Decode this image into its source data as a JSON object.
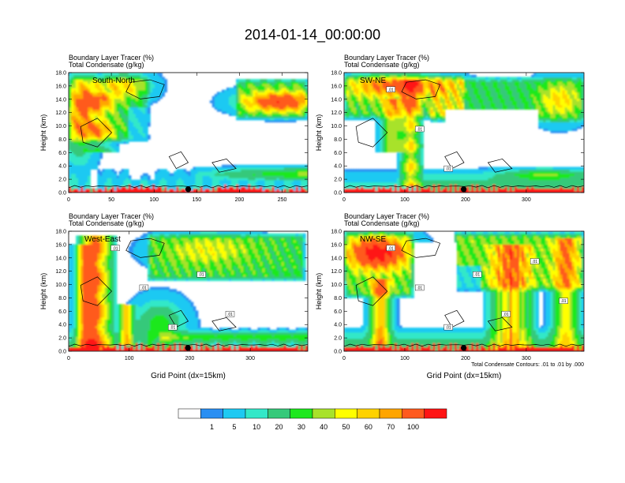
{
  "figure_title": "2014-01-14_00:00:00",
  "contour_note": "Total Condensate Contours: .01 to .01 by .000",
  "colors": {
    "levels": [
      "#ffffff",
      "#2a8ff2",
      "#1ec9f2",
      "#33e8c8",
      "#35c97a",
      "#1ee81e",
      "#a8e22a",
      "#ffff00",
      "#ffd200",
      "#ffa500",
      "#ff5a1e",
      "#ff1414"
    ],
    "contour": "#000000",
    "marker": "#000000"
  },
  "chart_data": [
    {
      "type": "heatmap",
      "panel_label": "South-North",
      "title_line1": "Boundary Layer Tracer   (%)",
      "title_line2": "Total Condensate   (g/kg)",
      "ylabel": "Height (km)",
      "xlabel": "",
      "xlim": [
        0,
        280
      ],
      "xticks": [
        0,
        50,
        100,
        150,
        200,
        250
      ],
      "ylim": [
        0,
        18
      ],
      "yticks": [
        "0.0",
        "2.0",
        "4.0",
        "6.0",
        "8.0",
        "10.0",
        "12.0",
        "14.0",
        "16.0",
        "18.0"
      ],
      "marker_x": 140
    },
    {
      "type": "heatmap",
      "panel_label": "SW-NE",
      "title_line1": "Boundary Layer Tracer   (%)",
      "title_line2": "Total Condensate   (g/kg)",
      "ylabel": "Height (km)",
      "xlabel": "",
      "xlim": [
        0,
        395
      ],
      "xticks": [
        0,
        100,
        200,
        300
      ],
      "ylim": [
        0,
        18
      ],
      "yticks": [
        "0.0",
        "2.0",
        "4.0",
        "6.0",
        "8.0",
        "10.0",
        "12.0",
        "14.0",
        "16.0",
        "18.0"
      ],
      "marker_x": 197,
      "contour_labels": [
        ".01",
        ".01",
        ".01"
      ]
    },
    {
      "type": "heatmap",
      "panel_label": "West-East",
      "title_line1": "Boundary Layer Tracer   (%)",
      "title_line2": "Total Condensate   (g/kg)",
      "ylabel": "Height (km)",
      "xlabel": "Grid Point (dx=15km)",
      "xlim": [
        0,
        395
      ],
      "xticks": [
        0,
        100,
        200,
        300
      ],
      "ylim": [
        0,
        18
      ],
      "yticks": [
        "0.0",
        "2.0",
        "4.0",
        "6.0",
        "8.0",
        "10.0",
        "12.0",
        "14.0",
        "16.0",
        "18.0"
      ],
      "marker_x": 197,
      "contour_labels": [
        ".01",
        ".01",
        ".01",
        ".01",
        ".01"
      ]
    },
    {
      "type": "heatmap",
      "panel_label": "NW-SE",
      "title_line1": "Boundary Layer Tracer   (%)",
      "title_line2": "Total Condensate   (g/kg)",
      "ylabel": "Height (km)",
      "xlabel": "Grid Point (dx=15km)",
      "xlim": [
        0,
        395
      ],
      "xticks": [
        0,
        100,
        200,
        300
      ],
      "ylim": [
        0,
        18
      ],
      "yticks": [
        "0.0",
        "2.0",
        "4.0",
        "6.0",
        "8.0",
        "10.0",
        "12.0",
        "14.0",
        "16.0",
        "18.0"
      ],
      "marker_x": 197,
      "contour_labels": [
        ".01",
        ".01",
        ".01",
        ".01",
        ".01",
        ".01",
        ".01"
      ]
    }
  ],
  "colorbar": {
    "labels": [
      "1",
      "5",
      "10",
      "20",
      "30",
      "40",
      "50",
      "60",
      "70",
      "100"
    ]
  }
}
